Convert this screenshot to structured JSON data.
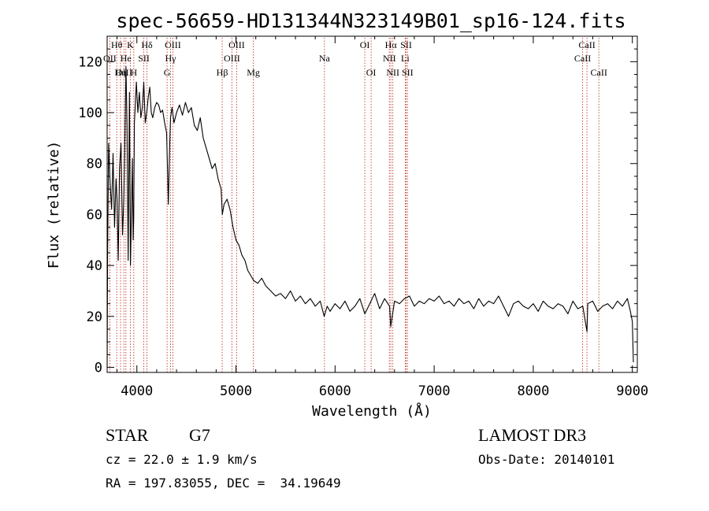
{
  "chart_data": {
    "type": "line",
    "title": "spec-56659-HD131344N323149B01_sp16-124.fits",
    "xlabel": "Wavelength (Å)",
    "ylabel": "Flux (relative)",
    "xlim": [
      3700,
      9050
    ],
    "ylim": [
      -2,
      130
    ],
    "xticks": [
      4000,
      5000,
      6000,
      7000,
      8000,
      9000
    ],
    "xtick_labels": [
      "4000",
      "5000",
      "6000",
      "7000",
      "8000",
      "9000"
    ],
    "yticks": [
      0,
      20,
      40,
      60,
      80,
      100,
      120
    ],
    "ytick_labels": [
      "0",
      "20",
      "40",
      "60",
      "80",
      "100",
      "120"
    ],
    "grid": false,
    "series": [
      {
        "name": "spectrum",
        "color": "#000000",
        "x": [
          3700,
          3705,
          3715,
          3730,
          3745,
          3760,
          3775,
          3790,
          3800,
          3812,
          3825,
          3840,
          3855,
          3868,
          3880,
          3890,
          3900,
          3912,
          3925,
          3935,
          3945,
          3955,
          3962,
          3968,
          3975,
          3985,
          3995,
          4010,
          4025,
          4040,
          4055,
          4070,
          4085,
          4100,
          4115,
          4130,
          4145,
          4160,
          4180,
          4200,
          4220,
          4240,
          4260,
          4280,
          4300,
          4318,
          4330,
          4340,
          4355,
          4375,
          4400,
          4430,
          4460,
          4490,
          4520,
          4550,
          4580,
          4610,
          4640,
          4670,
          4700,
          4730,
          4760,
          4790,
          4820,
          4850,
          4862,
          4880,
          4910,
          4940,
          4970,
          5000,
          5030,
          5060,
          5090,
          5120,
          5150,
          5180,
          5220,
          5260,
          5300,
          5350,
          5400,
          5450,
          5500,
          5550,
          5600,
          5650,
          5700,
          5750,
          5800,
          5850,
          5890,
          5920,
          5950,
          6000,
          6050,
          6100,
          6150,
          6200,
          6250,
          6300,
          6350,
          6400,
          6450,
          6500,
          6550,
          6562,
          6600,
          6650,
          6700,
          6750,
          6800,
          6850,
          6900,
          6950,
          7000,
          7050,
          7100,
          7150,
          7200,
          7250,
          7300,
          7350,
          7400,
          7450,
          7500,
          7550,
          7600,
          7650,
          7700,
          7750,
          7800,
          7850,
          7900,
          7950,
          8000,
          8050,
          8100,
          8150,
          8200,
          8250,
          8300,
          8350,
          8400,
          8450,
          8500,
          8542,
          8550,
          8600,
          8650,
          8700,
          8750,
          8800,
          8850,
          8900,
          8950,
          8980,
          9000,
          9010
        ],
        "values": [
          0,
          45,
          88,
          72,
          62,
          84,
          55,
          74,
          66,
          42,
          78,
          88,
          52,
          65,
          92,
          118,
          96,
          42,
          108,
          40,
          60,
          82,
          50,
          58,
          96,
          104,
          112,
          100,
          108,
          98,
          102,
          112,
          96,
          100,
          106,
          110,
          100,
          98,
          102,
          104,
          103,
          100,
          101,
          96,
          92,
          64,
          86,
          98,
          102,
          96,
          100,
          103,
          99,
          104,
          100,
          102,
          95,
          93,
          98,
          90,
          86,
          82,
          78,
          80,
          74,
          70,
          60,
          64,
          66,
          62,
          55,
          50,
          48,
          44,
          42,
          38,
          36,
          34,
          33,
          35,
          32,
          30,
          28,
          29,
          27,
          30,
          26,
          28,
          25,
          27,
          24,
          26,
          20,
          24,
          22,
          25,
          23,
          26,
          22,
          24,
          27,
          21,
          25,
          29,
          23,
          27,
          24,
          16,
          26,
          25,
          27,
          28,
          24,
          26,
          25,
          27,
          26,
          28,
          25,
          26,
          24,
          27,
          25,
          26,
          23,
          27,
          24,
          26,
          25,
          28,
          24,
          20,
          25,
          26,
          24,
          23,
          25,
          22,
          26,
          24,
          23,
          25,
          24,
          21,
          26,
          23,
          24,
          14,
          25,
          26,
          22,
          24,
          25,
          23,
          26,
          24,
          27,
          22,
          18,
          2
        ]
      }
    ],
    "line_markers": [
      {
        "label": "Hθ",
        "x": 3797,
        "row": 0
      },
      {
        "label": "OII",
        "x": 3727,
        "row": 1
      },
      {
        "label": "OIII",
        "x": 3869,
        "row": 2
      },
      {
        "label": "K",
        "x": 3934,
        "row": 0
      },
      {
        "label": "He",
        "x": 3889,
        "row": 1
      },
      {
        "label": "Hη",
        "x": 3835,
        "row": 2
      },
      {
        "label": "Hδ",
        "x": 4102,
        "row": 0
      },
      {
        "label": "SII",
        "x": 4070,
        "row": 1
      },
      {
        "label": "H",
        "x": 3969,
        "row": 2
      },
      {
        "label": "OIII",
        "x": 4363,
        "row": 0
      },
      {
        "label": "Hγ",
        "x": 4340,
        "row": 1
      },
      {
        "label": "G",
        "x": 4305,
        "row": 2
      },
      {
        "label": "OIII",
        "x": 5007,
        "row": 0
      },
      {
        "label": "OIII",
        "x": 4959,
        "row": 1
      },
      {
        "label": "Hβ",
        "x": 4861,
        "row": 2
      },
      {
        "label": "Mg",
        "x": 5175,
        "row": 2
      },
      {
        "label": "Na",
        "x": 5893,
        "row": 1
      },
      {
        "label": "OI",
        "x": 6300,
        "row": 0
      },
      {
        "label": "OI",
        "x": 6364,
        "row": 2
      },
      {
        "label": "Hα",
        "x": 6563,
        "row": 0
      },
      {
        "label": "NII",
        "x": 6548,
        "row": 1
      },
      {
        "label": "NII",
        "x": 6583,
        "row": 2
      },
      {
        "label": "SII",
        "x": 6717,
        "row": 0
      },
      {
        "label": "Li",
        "x": 6708,
        "row": 1
      },
      {
        "label": "SII",
        "x": 6731,
        "row": 2
      },
      {
        "label": "CaII",
        "x": 8542,
        "row": 0
      },
      {
        "label": "CaII",
        "x": 8498,
        "row": 1
      },
      {
        "label": "CaII",
        "x": 8662,
        "row": 2
      }
    ]
  },
  "info": {
    "object_class": "STAR",
    "subclass": "G7",
    "survey": "LAMOST DR3",
    "cz": "cz = 22.0 ± 1.9 km/s",
    "obs_date": "Obs-Date: 20140101",
    "coords": "RA = 197.83055, DEC =  34.19649"
  },
  "colors": {
    "line": "#000000",
    "marker": "#c0392b",
    "background": "#ffffff"
  }
}
